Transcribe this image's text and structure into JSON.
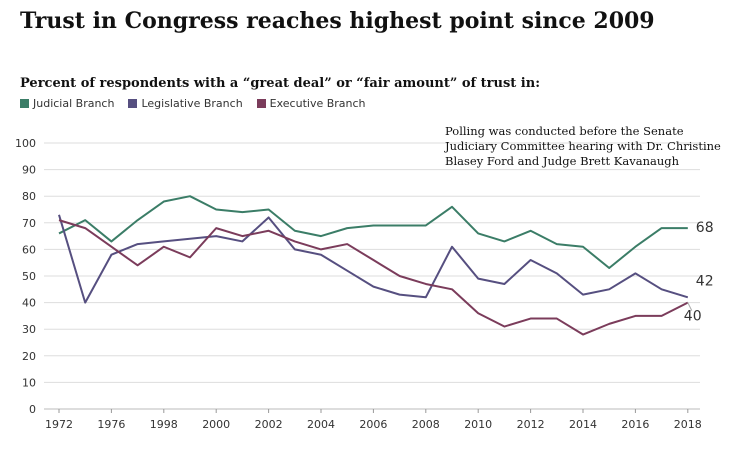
{
  "chart_data": {
    "type": "line",
    "title": "Trust in Congress reaches highest point since 2009",
    "subtitle": "Percent of respondents with a “great deal” or “fair amount” of trust in:",
    "annotation": "Polling was conducted before the Senate Judiciary Committee hearing with Dr. Christine Blasey Ford and Judge Brett Kavanaugh",
    "x": [
      "1972",
      "1974",
      "1976",
      "1997",
      "1998",
      "1999",
      "2000",
      "2001",
      "2002",
      "2003",
      "2004",
      "2005",
      "2006",
      "2007",
      "2008",
      "2009",
      "2010",
      "2011",
      "2012",
      "2013",
      "2014",
      "2015",
      "2016",
      "2017",
      "2018"
    ],
    "xtick_labels": [
      "1972",
      "1976",
      "1998",
      "2000",
      "2002",
      "2004",
      "2006",
      "2008",
      "2010",
      "2012",
      "2014",
      "2016",
      "2018"
    ],
    "ylim": [
      0,
      100
    ],
    "yticks": [
      0,
      10,
      20,
      30,
      40,
      50,
      60,
      70,
      80,
      90,
      100
    ],
    "grid": true,
    "legend": "top-left",
    "series": [
      {
        "name": "Judicial Branch",
        "color": "#3b7d67",
        "end_label": "68",
        "values": [
          66,
          71,
          63,
          71,
          78,
          80,
          75,
          74,
          75,
          67,
          65,
          68,
          69,
          69,
          69,
          76,
          66,
          63,
          67,
          62,
          61,
          53,
          61,
          68,
          68
        ]
      },
      {
        "name": "Legislative Branch",
        "color": "#564f80",
        "end_label": "42",
        "values": [
          73,
          40,
          58,
          62,
          63,
          64,
          65,
          63,
          72,
          60,
          58,
          52,
          46,
          43,
          42,
          61,
          49,
          47,
          56,
          51,
          43,
          45,
          51,
          45,
          42
        ]
      },
      {
        "name": "Executive Branch",
        "color": "#7b3c5b",
        "end_label": "40",
        "values": [
          71,
          68,
          61,
          54,
          61,
          57,
          68,
          65,
          67,
          63,
          60,
          62,
          56,
          50,
          47,
          45,
          36,
          31,
          34,
          34,
          28,
          32,
          35,
          35,
          40
        ]
      }
    ]
  }
}
